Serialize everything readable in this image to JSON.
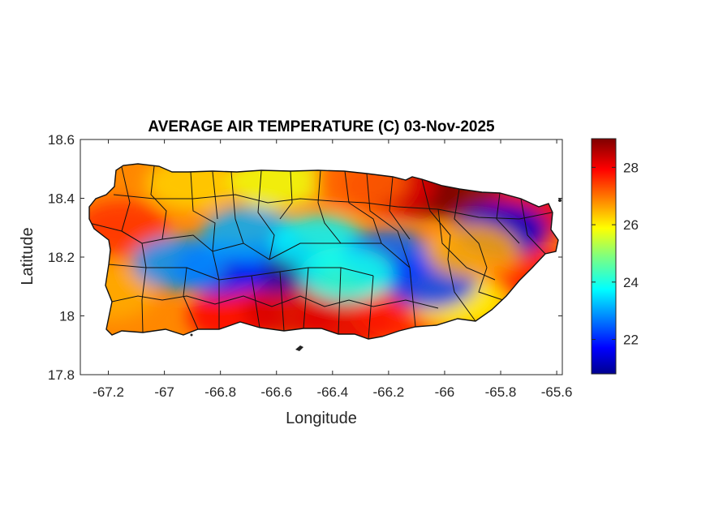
{
  "chart_data": {
    "type": "heatmap",
    "title": "AVERAGE AIR TEMPERATURE (C) 03-Nov-2025",
    "xlabel": "Longitude",
    "ylabel": "Latitude",
    "xlim": [
      -67.3,
      -65.58
    ],
    "ylim": [
      17.8,
      18.6
    ],
    "xticks": [
      -67.2,
      -67,
      -66.8,
      -66.6,
      -66.4,
      -66.2,
      -66,
      -65.8,
      -65.6
    ],
    "xtick_labels": [
      "-67.2",
      "-67",
      "-66.8",
      "-66.6",
      "-66.4",
      "-66.2",
      "-66",
      "-65.8",
      "-65.6"
    ],
    "yticks": [
      17.8,
      18,
      18.2,
      18.4,
      18.6
    ],
    "ytick_labels": [
      "17.8",
      "18",
      "18.2",
      "18.4",
      "18.6"
    ],
    "colorbar": {
      "colormap": "jet",
      "range": [
        20.8,
        29
      ],
      "ticks": [
        22,
        24,
        26,
        28
      ],
      "tick_labels": [
        "22",
        "24",
        "26",
        "28"
      ]
    },
    "grid": false,
    "region": "Puerto Rico",
    "temperature_centers": [
      {
        "lon": -66.1,
        "lat": 18.43,
        "t": 29.0
      },
      {
        "lon": -65.95,
        "lat": 18.42,
        "t": 29.0
      },
      {
        "lon": -65.7,
        "lat": 18.35,
        "t": 28.2
      },
      {
        "lon": -66.2,
        "lat": 18.44,
        "t": 28.2
      },
      {
        "lon": -67.15,
        "lat": 18.3,
        "t": 27.6
      },
      {
        "lon": -67.2,
        "lat": 18.08,
        "t": 26.6
      },
      {
        "lon": -66.75,
        "lat": 18.0,
        "t": 28.0
      },
      {
        "lon": -66.55,
        "lat": 18.02,
        "t": 28.3
      },
      {
        "lon": -66.35,
        "lat": 17.98,
        "t": 28.2
      },
      {
        "lon": -66.15,
        "lat": 18.0,
        "t": 27.8
      },
      {
        "lon": -65.7,
        "lat": 18.15,
        "t": 27.8
      },
      {
        "lon": -65.95,
        "lat": 18.05,
        "t": 26.0
      },
      {
        "lon": -66.9,
        "lat": 18.45,
        "t": 26.3
      },
      {
        "lon": -66.6,
        "lat": 18.46,
        "t": 25.8
      },
      {
        "lon": -66.3,
        "lat": 18.46,
        "t": 27.2
      },
      {
        "lon": -66.6,
        "lat": 18.17,
        "t": 21.2
      },
      {
        "lon": -66.8,
        "lat": 18.16,
        "t": 22.0
      },
      {
        "lon": -66.95,
        "lat": 18.18,
        "t": 23.0
      },
      {
        "lon": -66.7,
        "lat": 18.28,
        "t": 23.2
      },
      {
        "lon": -66.45,
        "lat": 18.25,
        "t": 23.8
      },
      {
        "lon": -66.2,
        "lat": 18.2,
        "t": 22.6
      },
      {
        "lon": -66.05,
        "lat": 18.12,
        "t": 22.3
      },
      {
        "lon": -65.8,
        "lat": 18.29,
        "t": 21.5
      },
      {
        "lon": -66.35,
        "lat": 18.14,
        "t": 24.0
      },
      {
        "lon": -65.9,
        "lat": 18.22,
        "t": 26.6
      }
    ]
  }
}
